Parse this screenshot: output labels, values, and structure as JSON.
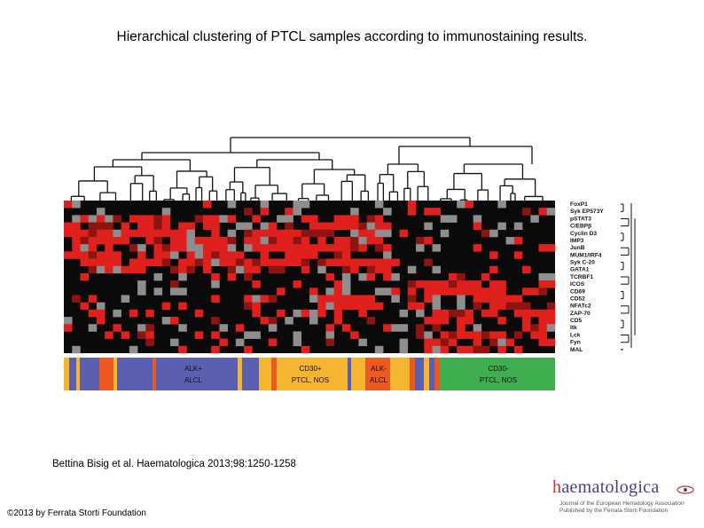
{
  "title": "Hierarchical clustering of PTCL samples according to immunostaining results.",
  "citation": "Bettina Bisig et al. Haematologica 2013;98:1250-1258",
  "copyright": "©2013 by Ferrata Storti Foundation",
  "logo": {
    "name": "haematologica",
    "line1": "Journal of the European Hematology Association",
    "line2": "Published by the Ferrata Storti Foundation"
  },
  "colors": {
    "high": "#e0201c",
    "mid": "#8c1512",
    "low": "#0a0a0a",
    "missing": "#8e8e8e",
    "alk_pos": "#5b5fb0",
    "cd30_pos": "#f6b530",
    "alk_neg": "#ec5a22",
    "cd30_neg": "#3fae4e"
  },
  "markers": [
    "FoxP1",
    "Syk EP573Y",
    "pSTAT3",
    "C/EBPβ",
    "Cyclin D3",
    "IMP3",
    "JunB",
    "MUM1/IRF4",
    "Syk C-20",
    "GATA1",
    "TCRBF1",
    "ICOS",
    "CD69",
    "CD52",
    "NFATc2",
    "ZAP-70",
    "CD5",
    "Itk",
    "Lck",
    "Fyn",
    "MAL"
  ],
  "groups": [
    {
      "label_line1": "ALK+",
      "label_line2": "ALCL"
    },
    {
      "label_line1": "CD30+",
      "label_line2": "PTCL, NOS"
    },
    {
      "label_line1": "ALK-",
      "label_line2": "ALCL"
    },
    {
      "label_line1": "CD30-",
      "label_line2": "PTCL, NOS"
    }
  ]
}
